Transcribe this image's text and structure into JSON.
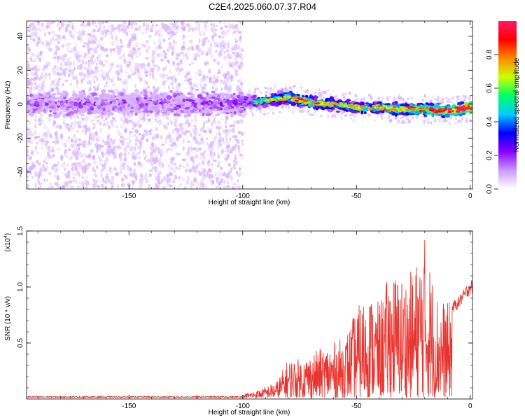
{
  "title": "C2E4.2025.060.07.37.R04",
  "chart_data": [
    {
      "type": "heatmap",
      "xlabel": "Height of straight line (km)",
      "ylabel": "Frequency (Hz)",
      "xlim": [
        -195,
        1
      ],
      "ylim": [
        -50,
        49
      ],
      "xticks": [
        -150,
        -100,
        -50,
        0
      ],
      "yticks": [
        -40,
        -20,
        0,
        20,
        40
      ],
      "colorbar": {
        "label": "Normalized spectral amplitude",
        "range": [
          0,
          1
        ],
        "ticks": [
          "0.0",
          "0.2",
          "0.4",
          "0.6",
          "0.8"
        ],
        "colormap": [
          "#ffffff",
          "#cc99ff",
          "#8800ff",
          "#0000ff",
          "#00ccff",
          "#00ff66",
          "#ccff00",
          "#ff8800",
          "#ff0000",
          "#ff1a66"
        ]
      },
      "ridge": [
        {
          "x": -195,
          "f": 0,
          "amp": 0.12
        },
        {
          "x": -150,
          "f": 1,
          "amp": 0.12
        },
        {
          "x": -105,
          "f": 0,
          "amp": 0.15
        },
        {
          "x": -90,
          "f": 2,
          "amp": 0.35
        },
        {
          "x": -80,
          "f": 4,
          "amp": 0.55
        },
        {
          "x": -70,
          "f": 1,
          "amp": 0.6
        },
        {
          "x": -60,
          "f": 0,
          "amp": 0.45
        },
        {
          "x": -50,
          "f": -2,
          "amp": 0.45
        },
        {
          "x": -40,
          "f": -2,
          "amp": 0.5
        },
        {
          "x": -30,
          "f": -3,
          "amp": 0.55
        },
        {
          "x": -20,
          "f": -3,
          "amp": 0.65
        },
        {
          "x": -10,
          "f": -4,
          "amp": 0.75
        },
        {
          "x": 0,
          "f": -2,
          "amp": 0.9
        }
      ]
    },
    {
      "type": "line",
      "xlabel": "Height of straight line (km)",
      "ylabel": "SNR (10 * v/v)",
      "y_multiplier": "(x10",
      "y_multiplier_exp": "4",
      "y_multiplier_close": ")",
      "xlim": [
        -195,
        1
      ],
      "ylim": [
        0,
        1.5
      ],
      "xticks": [
        -150,
        -100,
        -50,
        0
      ],
      "yticks": [
        "0.5",
        "1.0",
        "1.5"
      ],
      "series": [
        {
          "color": "#e8342f",
          "envelope": [
            [
              -195,
              0.02
            ],
            [
              -110,
              0.02
            ],
            [
              -100,
              0.03
            ],
            [
              -92,
              0.08
            ],
            [
              -85,
              0.15
            ],
            [
              -80,
              0.35
            ],
            [
              -75,
              0.35
            ],
            [
              -70,
              0.4
            ],
            [
              -65,
              0.45
            ],
            [
              -60,
              0.5
            ],
            [
              -55,
              0.55
            ],
            [
              -50,
              0.8
            ],
            [
              -45,
              0.95
            ],
            [
              -40,
              0.85
            ],
            [
              -35,
              1.15
            ],
            [
              -30,
              1.1
            ],
            [
              -25,
              1.15
            ],
            [
              -20,
              1.45
            ],
            [
              -15,
              0.95
            ],
            [
              -10,
              0.85
            ],
            [
              -5,
              0.95
            ],
            [
              0,
              1.1
            ]
          ]
        }
      ]
    }
  ]
}
